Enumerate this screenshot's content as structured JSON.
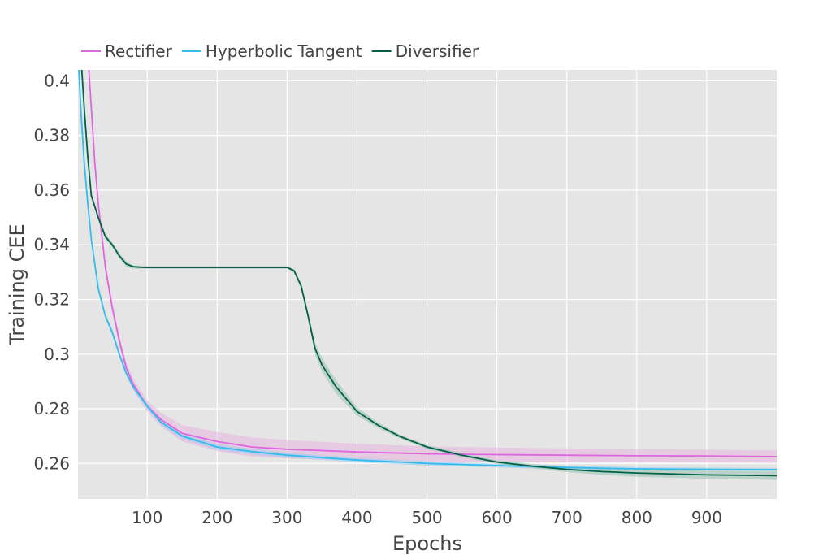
{
  "chart_data": {
    "type": "line",
    "xlabel": "Epochs",
    "ylabel": "Training CEE",
    "xlim": [
      1,
      1000
    ],
    "ylim": [
      0.247,
      0.404
    ],
    "x_ticks": [
      100,
      200,
      300,
      400,
      500,
      600,
      700,
      800,
      900
    ],
    "x_tick_labels": [
      "100",
      "200",
      "300",
      "400",
      "500",
      "600",
      "700",
      "800",
      "900"
    ],
    "y_ticks": [
      0.26,
      0.28,
      0.3,
      0.32,
      0.34,
      0.36,
      0.38,
      0.4
    ],
    "y_tick_labels": [
      "0.26",
      "0.28",
      "0.3",
      "0.32",
      "0.34",
      "0.36",
      "0.38",
      "0.4"
    ],
    "grid": true,
    "legend_placement": "top-left, above plot",
    "background_color": "#e5e5e5",
    "series": [
      {
        "name": "Rectifier",
        "color": "#e066e0",
        "band_color": "#e5b5e0",
        "x": [
          15,
          20,
          25,
          30,
          40,
          50,
          60,
          70,
          80,
          100,
          120,
          150,
          200,
          250,
          300,
          400,
          500,
          600,
          700,
          800,
          900,
          1000
        ],
        "y": [
          0.41,
          0.39,
          0.37,
          0.355,
          0.332,
          0.317,
          0.305,
          0.295,
          0.289,
          0.281,
          0.276,
          0.271,
          0.268,
          0.266,
          0.2652,
          0.2642,
          0.2635,
          0.2632,
          0.263,
          0.2628,
          0.2627,
          0.2625
        ],
        "lower": [
          0.41,
          0.39,
          0.369,
          0.353,
          0.33,
          0.315,
          0.303,
          0.293,
          0.287,
          0.279,
          0.2735,
          0.268,
          0.2645,
          0.2625,
          0.2618,
          0.2612,
          0.2608,
          0.2606,
          0.2605,
          0.2604,
          0.2603,
          0.2602
        ],
        "upper": [
          0.41,
          0.39,
          0.371,
          0.357,
          0.334,
          0.319,
          0.307,
          0.297,
          0.291,
          0.283,
          0.2785,
          0.274,
          0.2715,
          0.2695,
          0.2686,
          0.2672,
          0.2662,
          0.2658,
          0.2655,
          0.2652,
          0.265,
          0.2648
        ]
      },
      {
        "name": "Hyperbolic Tangent",
        "color": "#33bbee",
        "band_color": "#99ccee",
        "x": [
          1,
          5,
          10,
          15,
          20,
          30,
          40,
          50,
          60,
          70,
          80,
          100,
          120,
          150,
          200,
          250,
          300,
          400,
          500,
          600,
          700,
          800,
          900,
          1000
        ],
        "y": [
          0.41,
          0.39,
          0.37,
          0.355,
          0.342,
          0.324,
          0.314,
          0.308,
          0.3,
          0.293,
          0.288,
          0.281,
          0.275,
          0.27,
          0.266,
          0.2643,
          0.263,
          0.2612,
          0.26,
          0.2592,
          0.2585,
          0.258,
          0.2578,
          0.2577
        ],
        "lower": [
          0.41,
          0.39,
          0.369,
          0.354,
          0.341,
          0.323,
          0.313,
          0.307,
          0.299,
          0.292,
          0.287,
          0.28,
          0.274,
          0.269,
          0.265,
          0.2633,
          0.2621,
          0.2604,
          0.2592,
          0.2585,
          0.2578,
          0.2573,
          0.2571,
          0.257
        ],
        "upper": [
          0.41,
          0.39,
          0.371,
          0.356,
          0.343,
          0.325,
          0.315,
          0.309,
          0.301,
          0.294,
          0.289,
          0.282,
          0.276,
          0.271,
          0.267,
          0.2653,
          0.2639,
          0.262,
          0.2608,
          0.2599,
          0.2592,
          0.2587,
          0.2585,
          0.2584
        ]
      },
      {
        "name": "Diversifier",
        "color": "#006048",
        "band_color": "#99c2b2",
        "x": [
          1,
          5,
          10,
          15,
          20,
          30,
          40,
          50,
          60,
          70,
          80,
          90,
          100,
          150,
          200,
          250,
          300,
          310,
          320,
          330,
          340,
          350,
          370,
          400,
          430,
          460,
          500,
          550,
          600,
          650,
          700,
          750,
          800,
          900,
          1000
        ],
        "y": [
          0.42,
          0.41,
          0.39,
          0.372,
          0.358,
          0.35,
          0.343,
          0.34,
          0.336,
          0.333,
          0.332,
          0.3318,
          0.3317,
          0.3317,
          0.3317,
          0.3317,
          0.3317,
          0.3305,
          0.325,
          0.314,
          0.302,
          0.296,
          0.288,
          0.279,
          0.274,
          0.27,
          0.266,
          0.263,
          0.2605,
          0.259,
          0.2578,
          0.257,
          0.2565,
          0.2558,
          0.2555
        ],
        "lower": [
          0.42,
          0.41,
          0.389,
          0.371,
          0.357,
          0.349,
          0.342,
          0.339,
          0.335,
          0.332,
          0.3312,
          0.3312,
          0.3312,
          0.3312,
          0.3312,
          0.3312,
          0.3312,
          0.3298,
          0.324,
          0.3125,
          0.3,
          0.2935,
          0.2855,
          0.2775,
          0.273,
          0.2693,
          0.2653,
          0.2623,
          0.2598,
          0.2582,
          0.2568,
          0.2558,
          0.2551,
          0.2544,
          0.254
        ],
        "upper": [
          0.42,
          0.41,
          0.391,
          0.373,
          0.359,
          0.351,
          0.344,
          0.341,
          0.337,
          0.334,
          0.3324,
          0.3324,
          0.3322,
          0.3322,
          0.3322,
          0.3322,
          0.3322,
          0.3312,
          0.326,
          0.3155,
          0.304,
          0.2985,
          0.2905,
          0.2805,
          0.275,
          0.2707,
          0.2667,
          0.2637,
          0.2612,
          0.2598,
          0.2588,
          0.2582,
          0.2579,
          0.2572,
          0.257
        ]
      }
    ]
  }
}
